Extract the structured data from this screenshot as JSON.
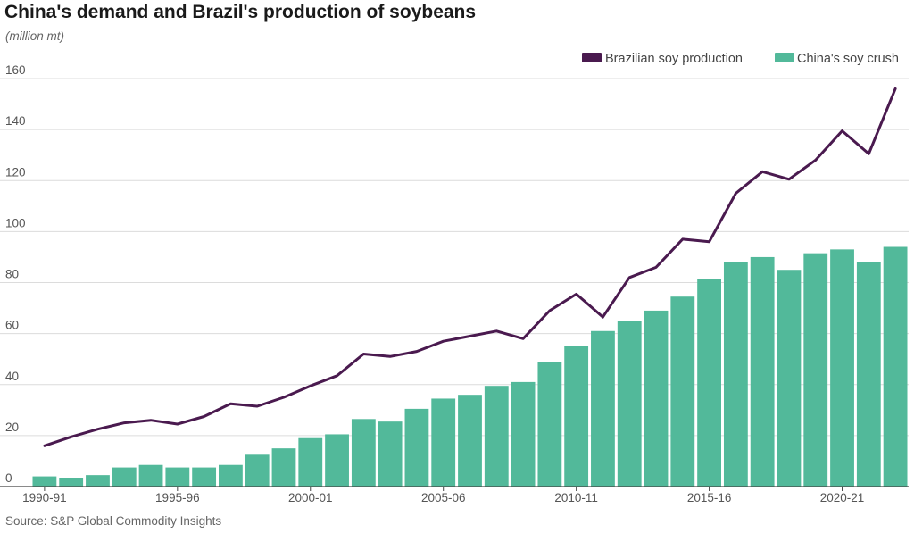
{
  "title": "China's demand and Brazil's production of soybeans",
  "subtitle": "(million mt)",
  "source": "Source: S&P Global Commodity Insights",
  "colors": {
    "line": "#4a1a4f",
    "bar": "#52b99a",
    "grid": "#dcdcdc",
    "axis": "#444444"
  },
  "chart_data": {
    "type": "bar",
    "categories": [
      "1990-91",
      "1991-92",
      "1992-93",
      "1993-94",
      "1994-95",
      "1995-96",
      "1996-97",
      "1997-98",
      "1998-99",
      "1999-00",
      "2000-01",
      "2001-02",
      "2002-03",
      "2003-04",
      "2004-05",
      "2005-06",
      "2006-07",
      "2007-08",
      "2008-09",
      "2009-10",
      "2010-11",
      "2011-12",
      "2012-13",
      "2013-14",
      "2014-15",
      "2015-16",
      "2016-17",
      "2017-18",
      "2018-19",
      "2019-20",
      "2020-21",
      "2021-22",
      "2022-23"
    ],
    "tick_labels": [
      "1990-91",
      "1995-96",
      "2000-01",
      "2005-06",
      "2010-11",
      "2015-16",
      "2020-21"
    ],
    "series": [
      {
        "name": "Brazilian soy production",
        "type": "line",
        "values": [
          16,
          19.5,
          22.5,
          25,
          26,
          24.5,
          27.5,
          32.5,
          31.5,
          35,
          39.5,
          43.5,
          52,
          51,
          53,
          57,
          59,
          61,
          58,
          69,
          75.5,
          66.5,
          82,
          86,
          97,
          96,
          115,
          123.5,
          120.5,
          128,
          139.5,
          130.5,
          156
        ]
      },
      {
        "name": "China's soy crush",
        "type": "bar",
        "values": [
          4,
          3.5,
          4.5,
          7.5,
          8.5,
          7.5,
          7.5,
          8.5,
          12.5,
          15,
          19,
          20.5,
          26.5,
          25.5,
          30.5,
          34.5,
          36,
          39.5,
          41,
          49,
          55,
          61,
          65,
          69,
          74.5,
          81.5,
          88,
          90,
          85,
          91.5,
          93,
          88,
          94
        ]
      }
    ],
    "yticks": [
      0,
      20,
      40,
      60,
      80,
      100,
      120,
      140,
      160
    ],
    "ylim": [
      0,
      160
    ],
    "grid": true,
    "legend_position": "top-right"
  }
}
